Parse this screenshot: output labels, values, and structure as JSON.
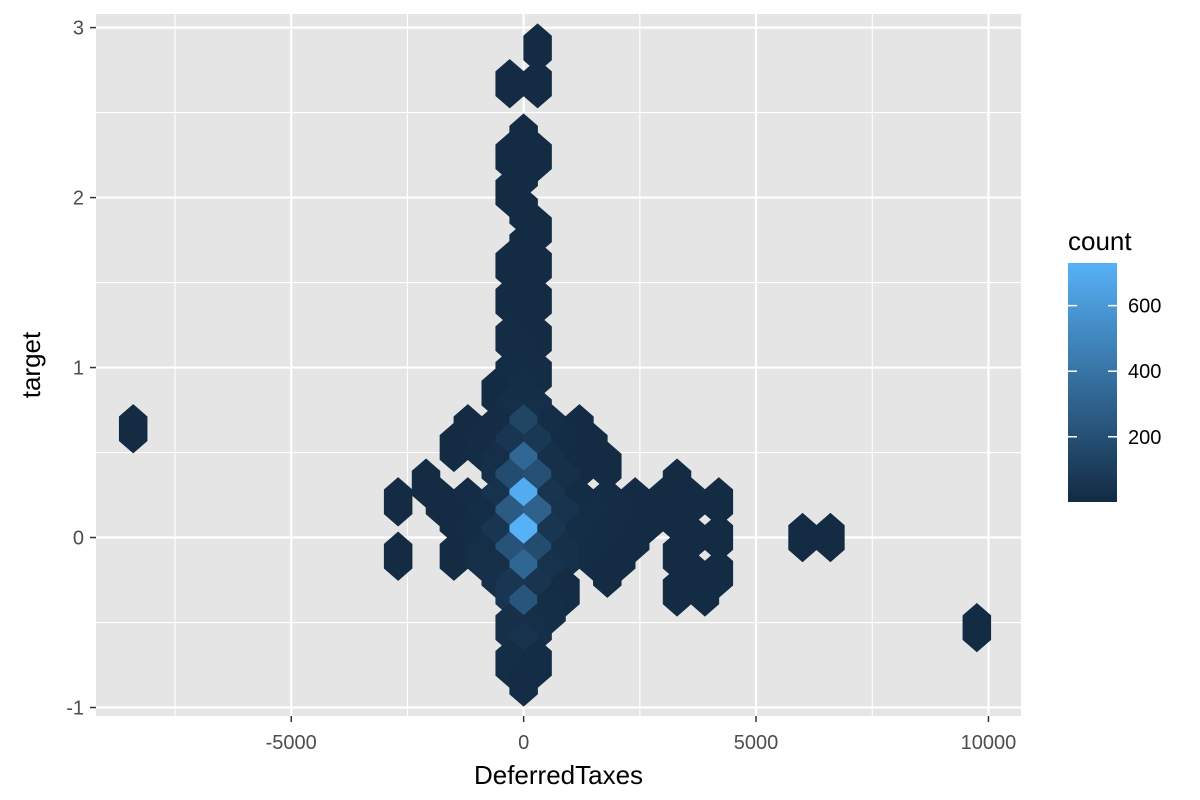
{
  "chart_data": {
    "type": "heatmap",
    "subtype": "hexbin",
    "title": "",
    "xlabel": "DeferredTaxes",
    "ylabel": "target",
    "xlim": [
      -9200,
      10700
    ],
    "ylim": [
      -1.05,
      3.08
    ],
    "x_ticks": [
      -5000,
      0,
      5000,
      10000
    ],
    "x_tick_labels": [
      "-5000",
      "0",
      "5000",
      "10000"
    ],
    "y_ticks": [
      -1,
      0,
      1,
      2,
      3
    ],
    "y_tick_labels": [
      "-1",
      "0",
      "1",
      "2",
      "3"
    ],
    "grid": true,
    "background": "#e5e5e5",
    "legend": {
      "title": "count",
      "position": "right",
      "ticks": [
        200,
        400,
        600
      ],
      "tick_labels": [
        "200",
        "400",
        "600"
      ],
      "range": [
        1,
        730
      ],
      "color_low": "#132b43",
      "color_high": "#56b1f7"
    },
    "hexbins": [
      {
        "x": 300,
        "y": 2.88,
        "count": 2
      },
      {
        "x": -300,
        "y": 2.67,
        "count": 2
      },
      {
        "x": 300,
        "y": 2.67,
        "count": 2
      },
      {
        "x": 0,
        "y": 2.35,
        "count": 3
      },
      {
        "x": -300,
        "y": 2.24,
        "count": 3
      },
      {
        "x": 300,
        "y": 2.24,
        "count": 2
      },
      {
        "x": 0,
        "y": 2.14,
        "count": 3
      },
      {
        "x": -300,
        "y": 2.03,
        "count": 3
      },
      {
        "x": 0,
        "y": 1.92,
        "count": 3
      },
      {
        "x": 300,
        "y": 1.81,
        "count": 3
      },
      {
        "x": 0,
        "y": 1.71,
        "count": 4
      },
      {
        "x": -300,
        "y": 1.6,
        "count": 4
      },
      {
        "x": 300,
        "y": 1.6,
        "count": 3
      },
      {
        "x": 0,
        "y": 1.49,
        "count": 4
      },
      {
        "x": -300,
        "y": 1.39,
        "count": 5
      },
      {
        "x": 300,
        "y": 1.39,
        "count": 4
      },
      {
        "x": 0,
        "y": 1.28,
        "count": 6
      },
      {
        "x": -300,
        "y": 1.17,
        "count": 8
      },
      {
        "x": 300,
        "y": 1.17,
        "count": 6
      },
      {
        "x": 0,
        "y": 1.07,
        "count": 10
      },
      {
        "x": -300,
        "y": 0.96,
        "count": 12
      },
      {
        "x": 300,
        "y": 0.96,
        "count": 10
      },
      {
        "x": -600,
        "y": 0.85,
        "count": 6
      },
      {
        "x": 0,
        "y": 0.85,
        "count": 18
      },
      {
        "x": -300,
        "y": 0.74,
        "count": 25
      },
      {
        "x": 300,
        "y": 0.74,
        "count": 22
      },
      {
        "x": -8400,
        "y": 0.64,
        "count": 1
      },
      {
        "x": -1200,
        "y": 0.64,
        "count": 3
      },
      {
        "x": -600,
        "y": 0.64,
        "count": 8
      },
      {
        "x": 0,
        "y": 0.64,
        "count": 140
      },
      {
        "x": 600,
        "y": 0.64,
        "count": 20
      },
      {
        "x": 1200,
        "y": 0.64,
        "count": 4
      },
      {
        "x": -1500,
        "y": 0.53,
        "count": 3
      },
      {
        "x": -900,
        "y": 0.53,
        "count": 10
      },
      {
        "x": -300,
        "y": 0.53,
        "count": 60
      },
      {
        "x": 300,
        "y": 0.53,
        "count": 70
      },
      {
        "x": 900,
        "y": 0.53,
        "count": 12
      },
      {
        "x": 1500,
        "y": 0.53,
        "count": 4
      },
      {
        "x": -600,
        "y": 0.42,
        "count": 25
      },
      {
        "x": 0,
        "y": 0.42,
        "count": 330
      },
      {
        "x": 600,
        "y": 0.42,
        "count": 30
      },
      {
        "x": 1200,
        "y": 0.42,
        "count": 6
      },
      {
        "x": 1800,
        "y": 0.42,
        "count": 3
      },
      {
        "x": -2100,
        "y": 0.32,
        "count": 2
      },
      {
        "x": -300,
        "y": 0.32,
        "count": 180
      },
      {
        "x": 300,
        "y": 0.32,
        "count": 200
      },
      {
        "x": 900,
        "y": 0.32,
        "count": 30
      },
      {
        "x": 3300,
        "y": 0.32,
        "count": 2
      },
      {
        "x": -2700,
        "y": 0.21,
        "count": 1
      },
      {
        "x": -1800,
        "y": 0.21,
        "count": 3
      },
      {
        "x": -1200,
        "y": 0.21,
        "count": 8
      },
      {
        "x": -600,
        "y": 0.21,
        "count": 40
      },
      {
        "x": 0,
        "y": 0.21,
        "count": 700
      },
      {
        "x": 600,
        "y": 0.21,
        "count": 50
      },
      {
        "x": 1200,
        "y": 0.21,
        "count": 14
      },
      {
        "x": 1800,
        "y": 0.21,
        "count": 8
      },
      {
        "x": 2400,
        "y": 0.21,
        "count": 5
      },
      {
        "x": 3000,
        "y": 0.21,
        "count": 4
      },
      {
        "x": 3600,
        "y": 0.21,
        "count": 3
      },
      {
        "x": 4200,
        "y": 0.21,
        "count": 2
      },
      {
        "x": -1500,
        "y": 0.11,
        "count": 5
      },
      {
        "x": -900,
        "y": 0.11,
        "count": 20
      },
      {
        "x": -300,
        "y": 0.11,
        "count": 260
      },
      {
        "x": 300,
        "y": 0.11,
        "count": 300
      },
      {
        "x": 900,
        "y": 0.11,
        "count": 40
      },
      {
        "x": 1500,
        "y": 0.11,
        "count": 15
      },
      {
        "x": 2100,
        "y": 0.11,
        "count": 8
      },
      {
        "x": 2700,
        "y": 0.11,
        "count": 5
      },
      {
        "x": 3300,
        "y": 0.11,
        "count": 3
      },
      {
        "x": -1200,
        "y": 0.0,
        "count": 10
      },
      {
        "x": -600,
        "y": 0.0,
        "count": 60
      },
      {
        "x": 0,
        "y": 0.0,
        "count": 730
      },
      {
        "x": 600,
        "y": 0.0,
        "count": 60
      },
      {
        "x": 1200,
        "y": 0.0,
        "count": 20
      },
      {
        "x": 1800,
        "y": 0.0,
        "count": 10
      },
      {
        "x": 2400,
        "y": 0.0,
        "count": 5
      },
      {
        "x": 3600,
        "y": 0.0,
        "count": 3
      },
      {
        "x": 4200,
        "y": 0.0,
        "count": 2
      },
      {
        "x": 6000,
        "y": 0.0,
        "count": 1
      },
      {
        "x": 6600,
        "y": 0.0,
        "count": 1
      },
      {
        "x": -2700,
        "y": -0.11,
        "count": 1
      },
      {
        "x": -1500,
        "y": -0.11,
        "count": 5
      },
      {
        "x": -900,
        "y": -0.11,
        "count": 25
      },
      {
        "x": -300,
        "y": -0.11,
        "count": 220
      },
      {
        "x": 300,
        "y": -0.11,
        "count": 180
      },
      {
        "x": 900,
        "y": -0.11,
        "count": 30
      },
      {
        "x": 1500,
        "y": -0.11,
        "count": 12
      },
      {
        "x": 2100,
        "y": -0.11,
        "count": 5
      },
      {
        "x": 3300,
        "y": -0.11,
        "count": 3
      },
      {
        "x": -600,
        "y": -0.21,
        "count": 30
      },
      {
        "x": 0,
        "y": -0.21,
        "count": 320
      },
      {
        "x": 600,
        "y": -0.21,
        "count": 40
      },
      {
        "x": 1800,
        "y": -0.21,
        "count": 3
      },
      {
        "x": 3600,
        "y": -0.21,
        "count": 3
      },
      {
        "x": 4200,
        "y": -0.21,
        "count": 2
      },
      {
        "x": -300,
        "y": -0.32,
        "count": 60
      },
      {
        "x": 300,
        "y": -0.32,
        "count": 50
      },
      {
        "x": 900,
        "y": -0.32,
        "count": 10
      },
      {
        "x": 3300,
        "y": -0.32,
        "count": 3
      },
      {
        "x": 3900,
        "y": -0.32,
        "count": 2
      },
      {
        "x": 0,
        "y": -0.42,
        "count": 230
      },
      {
        "x": 600,
        "y": -0.42,
        "count": 15
      },
      {
        "x": 9750,
        "y": -0.53,
        "count": 1
      },
      {
        "x": -300,
        "y": -0.53,
        "count": 30
      },
      {
        "x": 300,
        "y": -0.53,
        "count": 25
      },
      {
        "x": 0,
        "y": -0.64,
        "count": 40
      },
      {
        "x": -300,
        "y": -0.74,
        "count": 15
      },
      {
        "x": 300,
        "y": -0.74,
        "count": 12
      },
      {
        "x": 0,
        "y": -0.85,
        "count": 8
      }
    ]
  }
}
